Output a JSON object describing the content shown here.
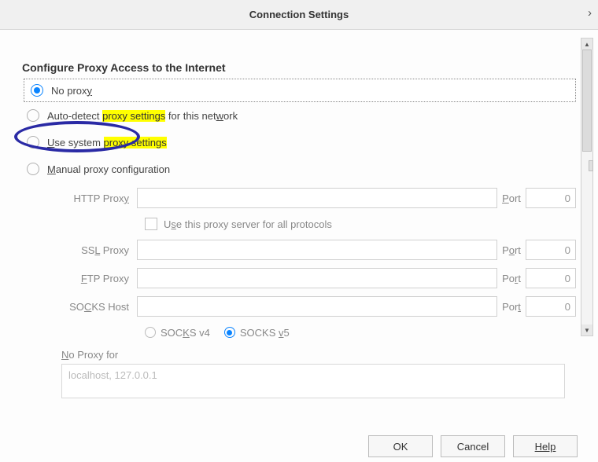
{
  "window": {
    "title": "Connection Settings",
    "close_glyph": "›"
  },
  "heading": "Configure Proxy Access to the Internet",
  "colors": {
    "highlight": "#ffff00",
    "accent": "#0a84ff",
    "annotation": "#2a2aa5",
    "titlebar_bg": "#f0f0f0",
    "border": "#d0d0d0"
  },
  "radio": {
    "no_proxy": {
      "pre": "No prox",
      "accel": "y",
      "post": ""
    },
    "auto_detect": {
      "pre": "Auto-detect ",
      "hl": "proxy settings",
      "mid": " for this net",
      "accel": "w",
      "post": "ork"
    },
    "use_system": {
      "accel": "U",
      "mid": "se system ",
      "hl": "proxy settings"
    },
    "manual": {
      "accel": "M",
      "post": "anual proxy configuration"
    }
  },
  "fields": {
    "http": {
      "label": "HTTP Prox",
      "accel": "y",
      "port_label_pre": "",
      "port_accel": "P",
      "port_label_post": "ort",
      "port": "0"
    },
    "use_all": {
      "pre": "U",
      "accel": "s",
      "post": "e this proxy server for all protocols"
    },
    "ssl": {
      "label_pre": "SS",
      "label_accel": "L",
      "label_post": " Proxy",
      "port_pre": "P",
      "port_accel": "o",
      "port_post": "rt",
      "port": "0"
    },
    "ftp": {
      "label_accel": "F",
      "label_post": "TP Proxy",
      "port_pre": "Po",
      "port_accel": "r",
      "port_post": "t",
      "port": "0"
    },
    "socks": {
      "label_pre": "SO",
      "label_accel": "C",
      "label_post": "KS Host",
      "port_pre": "Por",
      "port_accel": "t",
      "port_post": "",
      "port": "0"
    },
    "socks_v4": {
      "pre": "SOC",
      "accel": "K",
      "post": "S v4"
    },
    "socks_v5": {
      "pre": "SOCKS ",
      "accel": "v",
      "post": "5"
    },
    "no_proxy_for": {
      "accel": "N",
      "post": "o Proxy for",
      "placeholder": "localhost, 127.0.0.1"
    }
  },
  "buttons": {
    "ok": "OK",
    "cancel": "Cancel",
    "help": "Help"
  }
}
